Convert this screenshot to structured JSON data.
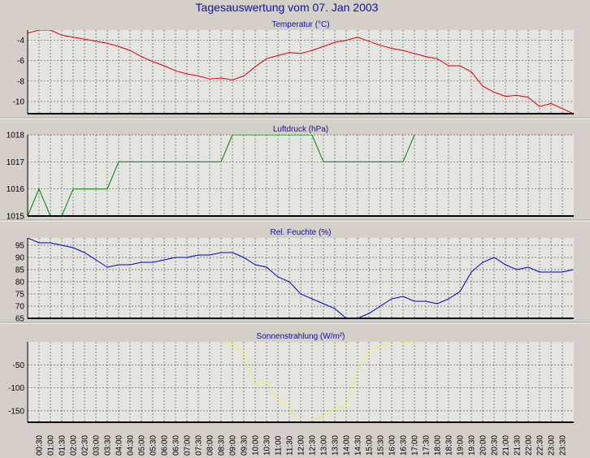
{
  "title": "Tagesauswertung vom 07. Jan 2003",
  "x_labels": [
    "00:30",
    "01:00",
    "01:30",
    "02:00",
    "02:30",
    "03:00",
    "03:30",
    "04:00",
    "04:30",
    "05:00",
    "05:30",
    "06:00",
    "06:30",
    "07:00",
    "07:30",
    "08:00",
    "08:30",
    "09:00",
    "09:30",
    "10:00",
    "10:30",
    "11:00",
    "11:30",
    "12:00",
    "12:30",
    "13:00",
    "13:30",
    "14:00",
    "14:30",
    "15:00",
    "15:30",
    "16:00",
    "16:30",
    "17:00",
    "17:30",
    "18:00",
    "18:30",
    "19:00",
    "19:30",
    "20:00",
    "20:30",
    "21:00",
    "21:30",
    "22:00",
    "22:30",
    "23:00",
    "23:30"
  ],
  "colors": {
    "background": "#d4d0c8",
    "plot_bg": "#e4e4e0",
    "grid": "#606060",
    "title": "#1010a0",
    "temperature": "#e00000",
    "pressure": "#008000",
    "humidity": "#0000c0",
    "radiation": "#f0f060"
  },
  "chart_data": [
    {
      "type": "line",
      "title": "Temperatur (°C)",
      "ylim": [
        -11.2,
        -3.0
      ],
      "yticks": [
        -4,
        -6,
        -8,
        -10
      ],
      "grid": true,
      "color": "#e00000",
      "x": [
        "00:00",
        "00:30",
        "01:00",
        "01:30",
        "02:00",
        "02:30",
        "03:00",
        "03:30",
        "04:00",
        "04:30",
        "05:00",
        "05:30",
        "06:00",
        "06:30",
        "07:00",
        "07:30",
        "08:00",
        "08:30",
        "09:00",
        "09:30",
        "10:00",
        "10:30",
        "11:00",
        "11:30",
        "12:00",
        "12:30",
        "13:00",
        "13:30",
        "14:00",
        "14:30",
        "15:00",
        "15:30",
        "16:00",
        "16:30",
        "17:00",
        "17:30",
        "18:00",
        "18:30",
        "19:00",
        "19:30",
        "20:00",
        "20:30",
        "21:00",
        "21:30",
        "22:00",
        "22:30",
        "23:00",
        "23:30",
        "23:59"
      ],
      "values": [
        -3.3,
        -3.0,
        -3.0,
        -3.5,
        -3.7,
        -3.9,
        -4.1,
        -4.3,
        -4.6,
        -5.0,
        -5.6,
        -6.1,
        -6.5,
        -7.0,
        -7.3,
        -7.5,
        -7.8,
        -7.7,
        -7.9,
        -7.5,
        -6.6,
        -5.8,
        -5.5,
        -5.2,
        -5.3,
        -5.0,
        -4.6,
        -4.2,
        -4.0,
        -3.7,
        -4.1,
        -4.5,
        -4.8,
        -5.0,
        -5.3,
        -5.6,
        -5.8,
        -6.5,
        -6.5,
        -7.1,
        -8.5,
        -9.1,
        -9.5,
        -9.4,
        -9.6,
        -10.5,
        -10.2,
        -10.7,
        -11.2
      ]
    },
    {
      "type": "line",
      "title": "Luftdruck (hPa)",
      "ylim": [
        1015,
        1018
      ],
      "yticks": [
        1018,
        1017,
        1016,
        1015
      ],
      "grid": true,
      "color": "#008000",
      "x": [
        "00:00",
        "00:30",
        "01:00",
        "01:30",
        "02:00",
        "02:30",
        "03:00",
        "03:30",
        "04:00",
        "04:30",
        "05:00",
        "05:30",
        "06:00",
        "06:30",
        "07:00",
        "07:30",
        "08:00",
        "08:30",
        "09:00",
        "09:30",
        "10:00",
        "10:30",
        "11:00",
        "11:30",
        "12:00",
        "12:30",
        "13:00",
        "13:30",
        "14:00",
        "14:30",
        "15:00",
        "15:30",
        "16:00",
        "16:30",
        "17:00"
      ],
      "values": [
        1015,
        1016,
        1015,
        1015,
        1016,
        1016,
        1016,
        1016,
        1017,
        1017,
        1017,
        1017,
        1017,
        1017,
        1017,
        1017,
        1017,
        1017,
        1018,
        1018,
        1018,
        1018,
        1018,
        1018,
        1018,
        1018,
        1017,
        1017,
        1017,
        1017,
        1017,
        1017,
        1017,
        1017,
        1018
      ]
    },
    {
      "type": "line",
      "title": "Rel. Feuchte (%)",
      "ylim": [
        65,
        98
      ],
      "yticks": [
        95,
        90,
        85,
        80,
        75,
        70,
        65
      ],
      "grid": true,
      "color": "#0000c0",
      "x": [
        "00:00",
        "00:30",
        "01:00",
        "01:30",
        "02:00",
        "02:30",
        "03:00",
        "03:30",
        "04:00",
        "04:30",
        "05:00",
        "05:30",
        "06:00",
        "06:30",
        "07:00",
        "07:30",
        "08:00",
        "08:30",
        "09:00",
        "09:30",
        "10:00",
        "10:30",
        "11:00",
        "11:30",
        "12:00",
        "12:30",
        "13:00",
        "13:30",
        "14:00",
        "14:30",
        "15:00",
        "15:30",
        "16:00",
        "16:30",
        "17:00",
        "17:30",
        "18:00",
        "18:30",
        "19:00",
        "19:30",
        "20:00",
        "20:30",
        "21:00",
        "21:30",
        "22:00",
        "22:30",
        "23:00",
        "23:30",
        "23:59"
      ],
      "values": [
        98,
        96,
        96,
        95,
        94,
        92,
        89,
        86,
        87,
        87,
        88,
        88,
        89,
        90,
        90,
        91,
        91,
        92,
        92,
        90,
        87,
        86,
        82,
        80,
        75,
        73,
        71,
        69,
        65,
        65,
        67,
        70,
        73,
        74,
        72,
        72,
        71,
        73,
        76,
        84,
        88,
        90,
        87,
        85,
        86,
        84,
        84,
        84,
        85
      ]
    },
    {
      "type": "area",
      "title": "Sonnenstrahlung (W/m²)",
      "ylim": [
        -175,
        0
      ],
      "yticks": [
        -50,
        -100,
        -150
      ],
      "grid": true,
      "color": "#f0f060",
      "x": [
        "00:00",
        "08:30",
        "09:00",
        "09:30",
        "10:00",
        "10:30",
        "11:00",
        "11:30",
        "12:00",
        "12:30",
        "13:00",
        "13:30",
        "14:00",
        "14:30",
        "15:00",
        "15:30",
        "16:00",
        "16:30",
        "17:00",
        "17:30",
        "23:59"
      ],
      "values": [
        0,
        0,
        -3,
        -25,
        -95,
        -85,
        -125,
        -140,
        -175,
        -170,
        -165,
        -145,
        -140,
        -55,
        -25,
        -10,
        -5,
        -3,
        -1,
        0,
        0
      ]
    }
  ]
}
